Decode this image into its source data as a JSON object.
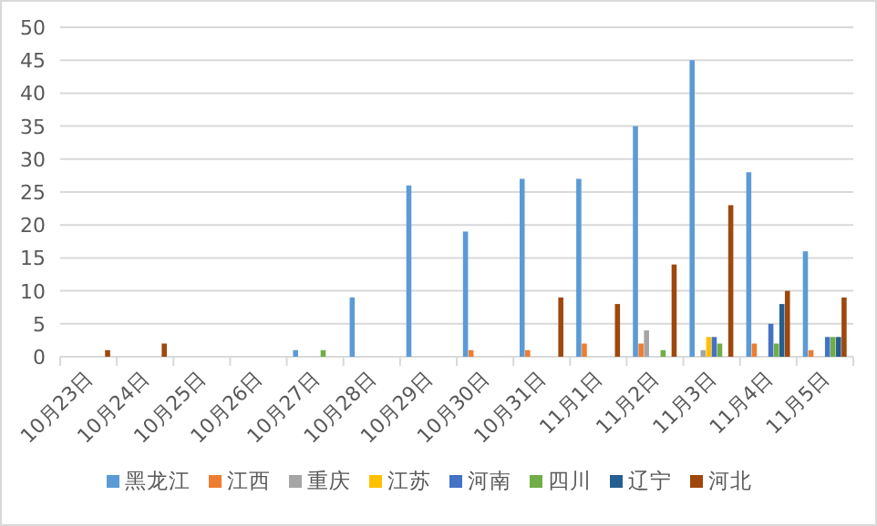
{
  "chart_data": {
    "type": "bar",
    "categories": [
      "10月23日",
      "10月24日",
      "10月25日",
      "10月26日",
      "10月27日",
      "10月28日",
      "10月29日",
      "10月30日",
      "10月31日",
      "11月1日",
      "11月2日",
      "11月3日",
      "11月4日",
      "11月5日"
    ],
    "series": [
      {
        "name": "黑龙江",
        "color": "#5b9bd5",
        "values": [
          null,
          null,
          null,
          null,
          1,
          9,
          26,
          19,
          27,
          27,
          35,
          45,
          28,
          16
        ]
      },
      {
        "name": "江西",
        "color": "#ed7d31",
        "values": [
          null,
          null,
          null,
          null,
          null,
          null,
          null,
          1,
          1,
          2,
          2,
          null,
          2,
          1
        ]
      },
      {
        "name": "重庆",
        "color": "#a5a5a5",
        "values": [
          null,
          null,
          null,
          null,
          null,
          null,
          null,
          null,
          null,
          null,
          4,
          1,
          null,
          null
        ]
      },
      {
        "name": "江苏",
        "color": "#ffc000",
        "values": [
          null,
          null,
          null,
          null,
          null,
          null,
          null,
          null,
          null,
          null,
          null,
          3,
          null,
          null
        ]
      },
      {
        "name": "河南",
        "color": "#4472c4",
        "values": [
          null,
          null,
          null,
          null,
          null,
          null,
          null,
          null,
          null,
          null,
          null,
          3,
          5,
          3
        ]
      },
      {
        "name": "四川",
        "color": "#70ad47",
        "values": [
          null,
          null,
          null,
          null,
          1,
          null,
          null,
          null,
          null,
          null,
          1,
          2,
          2,
          3
        ]
      },
      {
        "name": "辽宁",
        "color": "#255e91",
        "values": [
          null,
          null,
          null,
          null,
          null,
          null,
          null,
          null,
          null,
          null,
          null,
          null,
          8,
          3
        ]
      },
      {
        "name": "河北",
        "color": "#9e480e",
        "values": [
          1,
          2,
          null,
          null,
          null,
          null,
          null,
          null,
          9,
          8,
          14,
          23,
          10,
          9
        ]
      }
    ],
    "ylim": [
      0,
      50
    ],
    "yticks": [
      0,
      5,
      10,
      15,
      20,
      25,
      30,
      35,
      40,
      45,
      50
    ],
    "grid": "y",
    "legend": "bottom"
  }
}
